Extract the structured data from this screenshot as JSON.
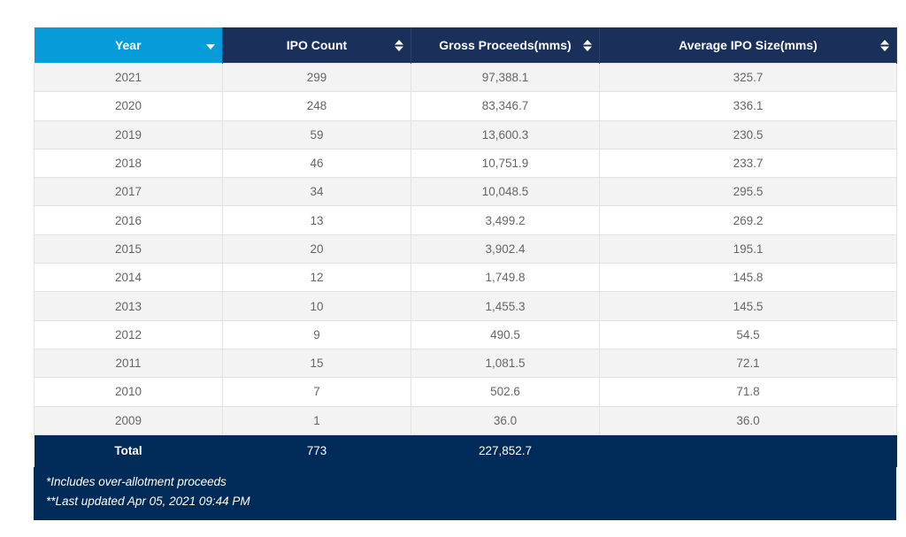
{
  "table": {
    "headers": [
      "Year",
      "IPO Count",
      "Gross Proceeds(mms)",
      "Average IPO Size(mms)"
    ],
    "sort": {
      "column": "Year",
      "direction": "descending"
    },
    "rows": [
      [
        "2021",
        "299",
        "97,388.1",
        "325.7"
      ],
      [
        "2020",
        "248",
        "83,346.7",
        "336.1"
      ],
      [
        "2019",
        "59",
        "13,600.3",
        "230.5"
      ],
      [
        "2018",
        "46",
        "10,751.9",
        "233.7"
      ],
      [
        "2017",
        "34",
        "10,048.5",
        "295.5"
      ],
      [
        "2016",
        "13",
        "3,499.2",
        "269.2"
      ],
      [
        "2015",
        "20",
        "3,902.4",
        "195.1"
      ],
      [
        "2014",
        "12",
        "1,749.8",
        "145.8"
      ],
      [
        "2013",
        "10",
        "1,455.3",
        "145.5"
      ],
      [
        "2012",
        "9",
        "490.5",
        "54.5"
      ],
      [
        "2011",
        "15",
        "1,081.5",
        "72.1"
      ],
      [
        "2010",
        "7",
        "502.6",
        "71.8"
      ],
      [
        "2009",
        "1",
        "36.0",
        "36.0"
      ]
    ],
    "total": {
      "label": "Total",
      "ipo_count": "773",
      "gross_proceeds": "227,852.7"
    },
    "notes": [
      "*Includes over-allotment proceeds",
      "**Last updated Apr 05, 2021 09:44 PM"
    ]
  },
  "colors": {
    "header": "#1a2f5a",
    "active_header": "#079bd9",
    "footer": "#002a57"
  }
}
